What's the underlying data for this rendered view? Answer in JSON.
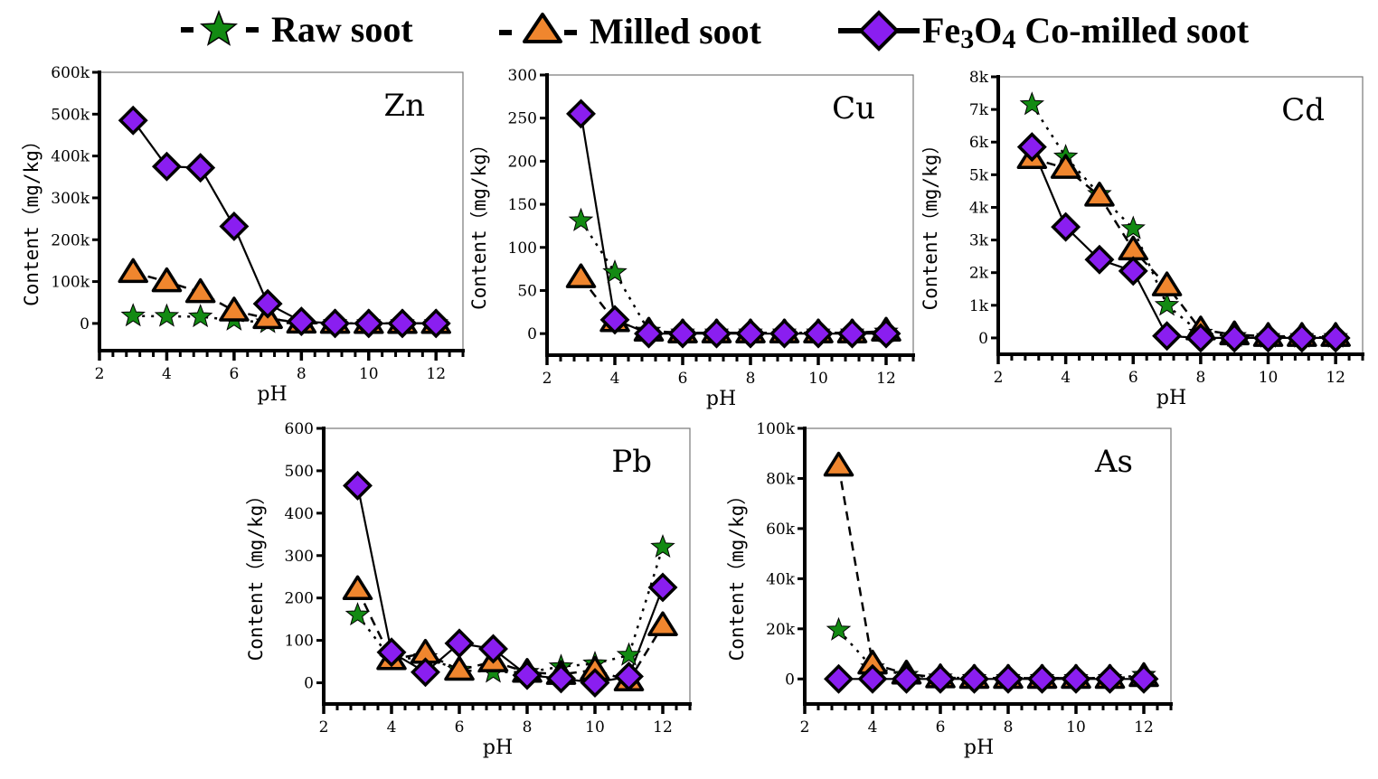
{
  "legend": {
    "items": [
      {
        "label": "Raw soot",
        "marker": "star",
        "color": "#138a13",
        "line": "dotted"
      },
      {
        "label": "Milled soot",
        "marker": "triangle",
        "color": "#f0862e",
        "line": "dashed"
      },
      {
        "label_main": "Fe",
        "label_sub1": "3",
        "label_mid": "O",
        "label_sub2": "4",
        "label_rest": " Co-milled soot",
        "label": "Fe3O4 Co-milled soot",
        "marker": "diamond",
        "color": "#8a1ef0",
        "line": "solid"
      }
    ]
  },
  "chart_data": [
    {
      "type": "line",
      "title": "Zn",
      "xlabel": "pH",
      "ylabel": "Content（mg/kg）",
      "x": [
        3,
        4,
        5,
        6,
        7,
        8,
        9,
        10,
        11,
        12
      ],
      "xlim": [
        2,
        12.8
      ],
      "xticks": [
        2,
        4,
        6,
        8,
        10,
        12
      ],
      "ylim": [
        -65000,
        600000
      ],
      "yticks": [
        0,
        100000,
        200000,
        300000,
        400000,
        500000,
        600000
      ],
      "yticklabels": [
        "0",
        "100k",
        "200k",
        "300k",
        "400k",
        "500k",
        "600k"
      ],
      "grid": false,
      "series": [
        {
          "name": "Raw soot",
          "values": [
            18000,
            17000,
            16000,
            8000,
            2000,
            500,
            300,
            200,
            200,
            200
          ]
        },
        {
          "name": "Milled soot",
          "values": [
            122000,
            100000,
            74000,
            30000,
            12000,
            1000,
            500,
            300,
            300,
            300
          ]
        },
        {
          "name": "Fe3O4 Co-milled soot",
          "values": [
            485000,
            375000,
            372000,
            232000,
            47000,
            5000,
            0,
            0,
            0,
            0
          ]
        }
      ]
    },
    {
      "type": "line",
      "title": "Cu",
      "xlabel": "pH",
      "ylabel": "Content（mg/kg）",
      "x": [
        3,
        4,
        5,
        6,
        7,
        8,
        9,
        10,
        11,
        12
      ],
      "xlim": [
        2,
        12.8
      ],
      "xticks": [
        2,
        4,
        6,
        8,
        10,
        12
      ],
      "ylim": [
        -25,
        300
      ],
      "yticks": [
        0,
        50,
        100,
        150,
        200,
        250,
        300
      ],
      "yticklabels": [
        "0",
        "50",
        "100",
        "150",
        "200",
        "250",
        "300"
      ],
      "grid": false,
      "series": [
        {
          "name": "Raw soot",
          "values": [
            131,
            71,
            3,
            1,
            1,
            1,
            1,
            1,
            1,
            2
          ]
        },
        {
          "name": "Milled soot",
          "values": [
            65,
            14,
            3,
            1,
            1,
            1,
            1,
            1,
            1,
            3
          ]
        },
        {
          "name": "Fe3O4 Co-milled soot",
          "values": [
            255,
            16,
            0,
            0,
            0,
            0,
            0,
            0,
            0,
            0
          ]
        }
      ]
    },
    {
      "type": "line",
      "title": "Cd",
      "xlabel": "pH",
      "ylabel": "Content（mg/kg）",
      "x": [
        3,
        4,
        5,
        6,
        7,
        8,
        9,
        10,
        11,
        12
      ],
      "xlim": [
        2,
        12.8
      ],
      "xticks": [
        2,
        4,
        6,
        8,
        10,
        12
      ],
      "ylim": [
        -500,
        8000
      ],
      "yticks": [
        0,
        1000,
        2000,
        3000,
        4000,
        5000,
        6000,
        7000,
        8000
      ],
      "yticklabels": [
        "0",
        "1k",
        "2k",
        "3k",
        "4k",
        "5k",
        "6k",
        "7k",
        "8k"
      ],
      "grid": false,
      "series": [
        {
          "name": "Raw soot",
          "values": [
            7150,
            5550,
            4400,
            3350,
            1000,
            150,
            50,
            20,
            20,
            20
          ]
        },
        {
          "name": "Milled soot",
          "values": [
            5500,
            5200,
            4350,
            2700,
            1600,
            250,
            100,
            50,
            50,
            50
          ]
        },
        {
          "name": "Fe3O4 Co-milled soot",
          "values": [
            5850,
            3400,
            2400,
            2050,
            60,
            0,
            0,
            0,
            0,
            0
          ]
        }
      ]
    },
    {
      "type": "line",
      "title": "Pb",
      "xlabel": "pH",
      "ylabel": "Content（mg/kg）",
      "x": [
        3,
        4,
        5,
        6,
        7,
        8,
        9,
        10,
        11,
        12
      ],
      "xlim": [
        2,
        12.8
      ],
      "xticks": [
        2,
        4,
        6,
        8,
        10,
        12
      ],
      "ylim": [
        -50,
        600
      ],
      "yticks": [
        0,
        100,
        200,
        300,
        400,
        500,
        600
      ],
      "yticklabels": [
        "0",
        "100",
        "200",
        "300",
        "400",
        "500",
        "600"
      ],
      "grid": false,
      "series": [
        {
          "name": "Raw soot",
          "values": [
            160,
            55,
            60,
            30,
            25,
            25,
            38,
            45,
            65,
            320
          ]
        },
        {
          "name": "Milled soot",
          "values": [
            220,
            55,
            70,
            30,
            50,
            25,
            20,
            30,
            5,
            135
          ]
        },
        {
          "name": "Fe3O4 Co-milled soot",
          "values": [
            465,
            72,
            25,
            93,
            80,
            18,
            10,
            0,
            15,
            225
          ]
        }
      ]
    },
    {
      "type": "line",
      "title": "As",
      "xlabel": "pH",
      "ylabel": "Content（mg/kg）",
      "x": [
        3,
        4,
        5,
        6,
        7,
        8,
        9,
        10,
        11,
        12
      ],
      "xlim": [
        2,
        12.8
      ],
      "xticks": [
        2,
        4,
        6,
        8,
        10,
        12
      ],
      "ylim": [
        -10000,
        100000
      ],
      "yticks": [
        0,
        20000,
        40000,
        60000,
        80000,
        100000
      ],
      "yticklabels": [
        "0",
        "20k",
        "40k",
        "60k",
        "80k",
        "100k"
      ],
      "grid": false,
      "series": [
        {
          "name": "Raw soot",
          "values": [
            19500,
            4500,
            1500,
            500,
            300,
            300,
            300,
            300,
            300,
            1500
          ]
        },
        {
          "name": "Milled soot",
          "values": [
            85000,
            6000,
            2000,
            500,
            300,
            300,
            300,
            300,
            300,
            1000
          ]
        },
        {
          "name": "Fe3O4 Co-milled soot",
          "values": [
            0,
            0,
            0,
            0,
            0,
            0,
            0,
            0,
            0,
            0
          ]
        }
      ]
    }
  ]
}
